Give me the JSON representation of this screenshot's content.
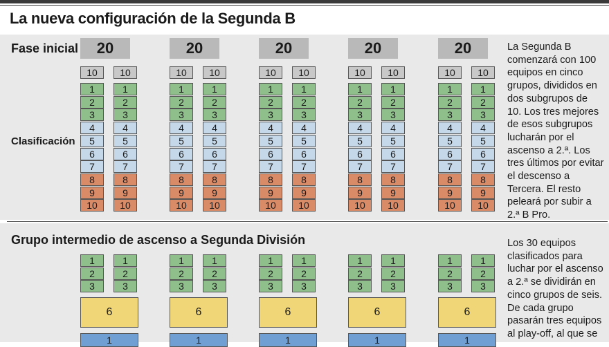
{
  "title": "La nueva configuración de la Segunda B",
  "section1": {
    "title": "Fase inicial",
    "group_total": "20",
    "subgroup_total": "10",
    "row_label": "Clasificación",
    "positions": [
      "1",
      "2",
      "3",
      "4",
      "5",
      "6",
      "7",
      "8",
      "9",
      "10"
    ],
    "group_count": 5,
    "description": "La Segunda B comenzará con 100 equipos en cinco grupos, divididos en dos subgrupos de 10. Los tres mejores de esos subgrupos lucharán por el ascenso a 2.ª. Los tres últimos por evitar el descenso a Tercera. El resto peleará por subir a 2.ª B Pro."
  },
  "section2": {
    "title": "Grupo intermedio de ascenso a Segunda División",
    "positions": [
      "1",
      "2",
      "3"
    ],
    "group_size": "6",
    "next_value": "1",
    "description": "Los 30 equipos clasificados para luchar por el ascenso a 2.ª se dividirán en cinco grupos de seis. De cada grupo pasarán tres equipos al play-off, al que se"
  },
  "colors": {
    "top": "#8fc08c",
    "middle": "#c4d8ea",
    "bottom": "#d98b68",
    "group": "#f1d678",
    "next": "#6f9fd3"
  }
}
